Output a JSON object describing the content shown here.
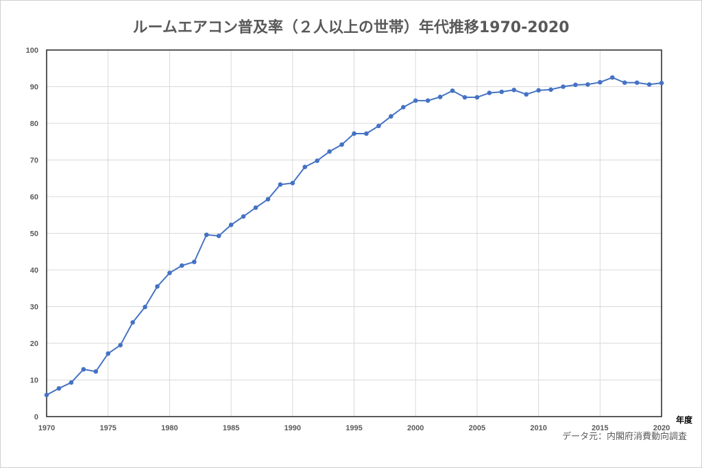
{
  "chart_data": {
    "type": "line",
    "title": "ルームエアコン普及率（２人以上の世帯）年代推移1970-2020",
    "xlabel": "年度",
    "ylabel": "",
    "source_note": "データ元：内閣府消費動向調査",
    "xlim": [
      1970,
      2020
    ],
    "ylim": [
      0,
      100
    ],
    "x_ticks": [
      1970,
      1975,
      1980,
      1985,
      1990,
      1995,
      2000,
      2005,
      2010,
      2015,
      2020
    ],
    "y_ticks": [
      0,
      10,
      20,
      30,
      40,
      50,
      60,
      70,
      80,
      90,
      100
    ],
    "grid": true,
    "series_color": "#4472C4",
    "series": [
      {
        "name": "ルームエアコン普及率",
        "x": [
          1970,
          1971,
          1972,
          1973,
          1974,
          1975,
          1976,
          1977,
          1978,
          1979,
          1980,
          1981,
          1982,
          1983,
          1984,
          1985,
          1986,
          1987,
          1988,
          1989,
          1990,
          1991,
          1992,
          1993,
          1994,
          1995,
          1996,
          1997,
          1998,
          1999,
          2000,
          2001,
          2002,
          2003,
          2004,
          2005,
          2006,
          2007,
          2008,
          2009,
          2010,
          2011,
          2012,
          2013,
          2014,
          2015,
          2016,
          2017,
          2018,
          2019,
          2020
        ],
        "values": [
          5.9,
          7.7,
          9.3,
          12.9,
          12.3,
          17.2,
          19.5,
          25.7,
          29.9,
          35.5,
          39.2,
          41.2,
          42.2,
          49.6,
          49.3,
          52.3,
          54.6,
          57.0,
          59.3,
          63.3,
          63.7,
          68.1,
          69.8,
          72.3,
          74.2,
          77.2,
          77.2,
          79.3,
          81.9,
          84.4,
          86.2,
          86.2,
          87.2,
          88.9,
          87.1,
          87.1,
          88.3,
          88.6,
          89.1,
          87.9,
          89.0,
          89.2,
          90.0,
          90.5,
          90.6,
          91.2,
          92.5,
          91.1,
          91.1,
          90.6,
          91.0
        ]
      }
    ]
  }
}
